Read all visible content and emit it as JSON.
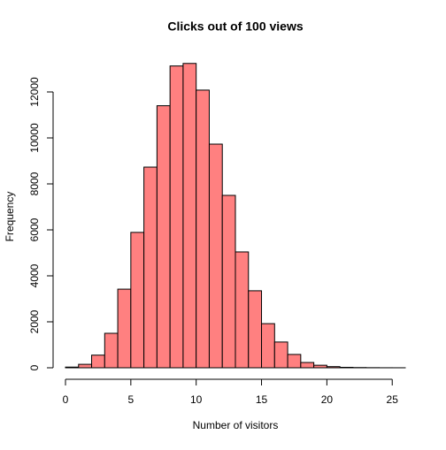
{
  "chart_data": {
    "type": "histogram",
    "title": "Clicks out of 100 views",
    "x_label": "Number of visitors",
    "y_label": "Frequency",
    "bins": [
      0,
      1,
      2,
      3,
      4,
      5,
      6,
      7,
      8,
      9,
      10,
      11,
      12,
      13,
      14,
      15,
      16,
      17,
      18,
      19,
      20,
      21,
      22,
      23,
      24,
      25,
      26
    ],
    "values": [
      30,
      150,
      550,
      1500,
      3420,
      5890,
      8730,
      11400,
      13130,
      13240,
      12080,
      9730,
      7500,
      5040,
      3350,
      1920,
      1120,
      580,
      230,
      110,
      50,
      20,
      10,
      5,
      2,
      1
    ],
    "color": "#ff8080",
    "xlim": [
      0,
      26
    ],
    "xticks": [
      0,
      5,
      10,
      15,
      20,
      25
    ],
    "ylim": [
      0,
      13240
    ],
    "yticks": [
      0,
      2000,
      4000,
      6000,
      8000,
      10000,
      12000
    ]
  }
}
